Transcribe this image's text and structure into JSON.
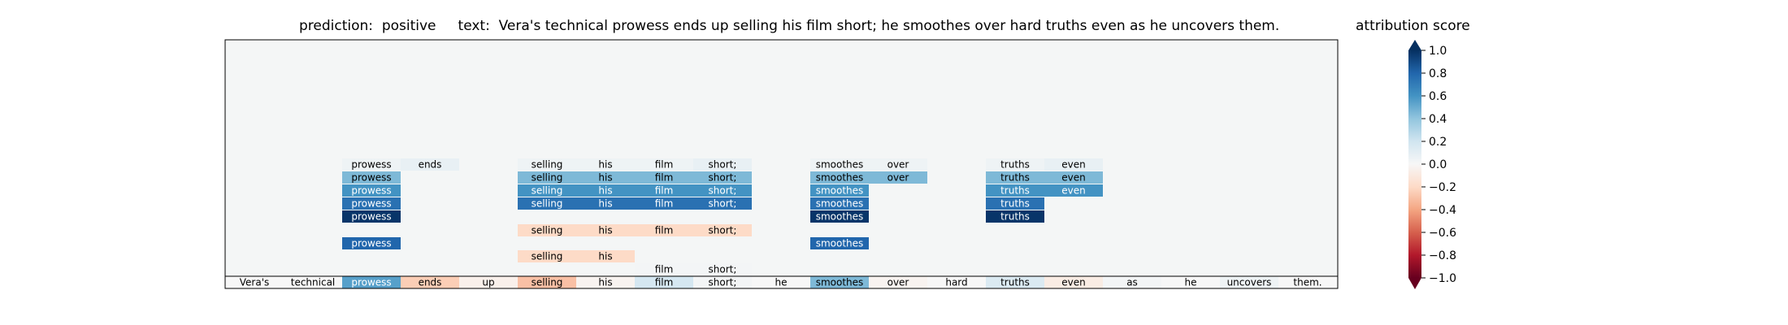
{
  "main_title": "prediction:  positive     text:  Vera's technical prowess ends up selling his film short; he smoothes over hard truths even as he uncovers them.",
  "colorbar": {
    "title": "attribution score",
    "ticks": [
      "1.0",
      "0.8",
      "0.6",
      "0.4",
      "0.2",
      "0.0",
      "−0.2",
      "−0.4",
      "−0.6",
      "−0.8",
      "−1.0"
    ],
    "range": [
      -1.0,
      1.0
    ],
    "colormap": "RdBu"
  },
  "chart_data": {
    "type": "heatmap",
    "title": "prediction:  positive     text:  Vera's technical prowess ends up selling his film short; he smoothes over hard truths even as he uncovers them.",
    "prediction": "positive",
    "tokens": [
      "Vera's",
      "technical",
      "prowess",
      "ends",
      "up",
      "selling",
      "his",
      "film",
      "short;",
      "he",
      "smoothes",
      "over",
      "hard",
      "truths",
      "even",
      "as",
      "he",
      "uncovers",
      "them."
    ],
    "rows": [
      {
        "level": 9,
        "cells": [
          {
            "i": 2,
            "v": 0.05
          },
          {
            "i": 3,
            "v": 0.08
          },
          {
            "i": 5,
            "v": 0.05
          },
          {
            "i": 6,
            "v": 0.05
          },
          {
            "i": 7,
            "v": 0.05
          },
          {
            "i": 8,
            "v": 0.08
          },
          {
            "i": 10,
            "v": 0.05
          },
          {
            "i": 11,
            "v": 0.05
          },
          {
            "i": 13,
            "v": 0.05
          },
          {
            "i": 14,
            "v": 0.08
          }
        ]
      },
      {
        "level": 8,
        "cells": [
          {
            "i": 2,
            "v": 0.45
          },
          {
            "i": 5,
            "v": 0.45
          },
          {
            "i": 6,
            "v": 0.45
          },
          {
            "i": 7,
            "v": 0.45
          },
          {
            "i": 8,
            "v": 0.45
          },
          {
            "i": 10,
            "v": 0.45
          },
          {
            "i": 11,
            "v": 0.45
          },
          {
            "i": 13,
            "v": 0.45
          },
          {
            "i": 14,
            "v": 0.45
          }
        ]
      },
      {
        "level": 7,
        "cells": [
          {
            "i": 2,
            "v": 0.6
          },
          {
            "i": 5,
            "v": 0.6
          },
          {
            "i": 6,
            "v": 0.6
          },
          {
            "i": 7,
            "v": 0.6
          },
          {
            "i": 8,
            "v": 0.6
          },
          {
            "i": 10,
            "v": 0.6
          },
          {
            "i": 13,
            "v": 0.6
          },
          {
            "i": 14,
            "v": 0.6
          }
        ]
      },
      {
        "level": 6,
        "cells": [
          {
            "i": 2,
            "v": 0.75
          },
          {
            "i": 5,
            "v": 0.75
          },
          {
            "i": 6,
            "v": 0.75
          },
          {
            "i": 7,
            "v": 0.75
          },
          {
            "i": 8,
            "v": 0.75
          },
          {
            "i": 10,
            "v": 0.75
          },
          {
            "i": 13,
            "v": 0.75
          }
        ]
      },
      {
        "level": 5,
        "cells": [
          {
            "i": 2,
            "v": 0.98
          },
          {
            "i": 10,
            "v": 0.98
          },
          {
            "i": 13,
            "v": 0.98
          }
        ]
      },
      {
        "level": 4,
        "cells": [
          {
            "i": 5,
            "v": -0.2
          },
          {
            "i": 6,
            "v": -0.2
          },
          {
            "i": 7,
            "v": -0.2
          },
          {
            "i": 8,
            "v": -0.2
          }
        ]
      },
      {
        "level": 3,
        "cells": [
          {
            "i": 2,
            "v": 0.8
          },
          {
            "i": 10,
            "v": 0.8
          }
        ]
      },
      {
        "level": 2,
        "cells": [
          {
            "i": 5,
            "v": -0.2
          },
          {
            "i": 6,
            "v": -0.2
          }
        ]
      },
      {
        "level": 1,
        "cells": [
          {
            "i": 7,
            "v": 0.02
          },
          {
            "i": 8,
            "v": 0.02
          }
        ]
      },
      {
        "level": 0,
        "cells": [
          {
            "i": 0,
            "v": 0.0
          },
          {
            "i": 1,
            "v": 0.0
          },
          {
            "i": 2,
            "v": 0.55
          },
          {
            "i": 3,
            "v": -0.25
          },
          {
            "i": 4,
            "v": -0.05
          },
          {
            "i": 5,
            "v": -0.3
          },
          {
            "i": 6,
            "v": -0.03
          },
          {
            "i": 7,
            "v": 0.18
          },
          {
            "i": 8,
            "v": 0.02
          },
          {
            "i": 9,
            "v": 0.0
          },
          {
            "i": 10,
            "v": 0.45
          },
          {
            "i": 11,
            "v": -0.03
          },
          {
            "i": 12,
            "v": 0.0
          },
          {
            "i": 13,
            "v": 0.15
          },
          {
            "i": 14,
            "v": -0.08
          },
          {
            "i": 15,
            "v": 0.02
          },
          {
            "i": 16,
            "v": 0.0
          },
          {
            "i": 17,
            "v": 0.05
          },
          {
            "i": 18,
            "v": 0.0
          }
        ]
      }
    ]
  }
}
